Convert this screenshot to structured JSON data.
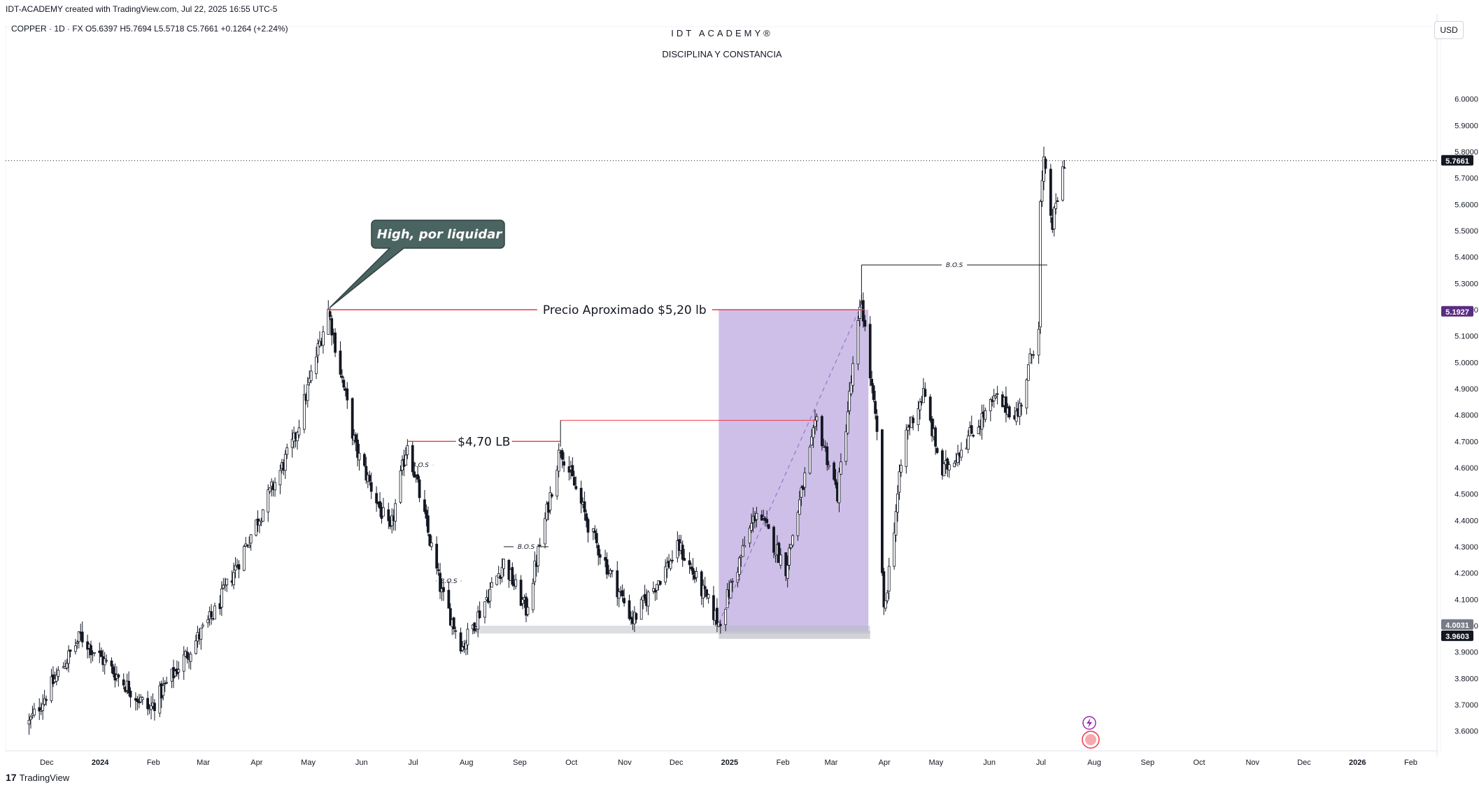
{
  "header": {
    "created_line": "IDT-ACADEMY created with TradingView.com, Jul 22, 2025 16:55 UTC-5",
    "ohlc_line": "COPPER · 1D · FX  O5.6397  H5.7694  L5.5718  C5.7661  +0.1264 (+2.24%)",
    "brand_title": "IDT ACADEMY®",
    "brand_subtitle": "DISCIPLINA Y CONSTANCIA",
    "currency": "USD"
  },
  "footer": {
    "logo_mark": "17",
    "logo_text": "TradingView"
  },
  "colors": {
    "candle": "#131722",
    "red_line": "#f23645",
    "purple_zone": "#b39ddb",
    "callout_bg": "#4a6461",
    "grey_zone": "#b2b5be"
  },
  "chart_data": {
    "type": "candlestick",
    "symbol": "COPPER",
    "interval": "1D",
    "ylim": [
      3.53,
      6.27
    ],
    "y_ticks": [
      3.6,
      3.7,
      3.8,
      3.9,
      4.0,
      4.1,
      4.2,
      4.3,
      4.4,
      4.5,
      4.6,
      4.7,
      4.8,
      4.9,
      5.0,
      5.1,
      5.2,
      5.3,
      5.4,
      5.5,
      5.6,
      5.7,
      5.8,
      5.9,
      6.0
    ],
    "y_tick_labels": [
      "3.6000",
      "3.7000",
      "3.8000",
      "3.9000",
      "4.0000",
      "4.1000",
      "4.2000",
      "4.3000",
      "4.4000",
      "4.5000",
      "4.6000",
      "4.7000",
      "4.8000",
      "4.9000",
      "5.0000",
      "5.1000",
      "5.2000",
      "5.3000",
      "5.4000",
      "5.5000",
      "5.6000",
      "5.7000",
      "5.8000",
      "5.9000",
      "6.0000"
    ],
    "x_labels": [
      "Dec",
      "2024",
      "Feb",
      "Mar",
      "Apr",
      "May",
      "Jun",
      "Jul",
      "Aug",
      "Sep",
      "Oct",
      "Nov",
      "Dec",
      "2025",
      "Feb",
      "Mar",
      "Apr",
      "May",
      "Jun",
      "Jul",
      "Aug",
      "Sep",
      "Oct",
      "Nov",
      "Dec",
      "2026",
      "Feb"
    ],
    "bold_x_labels": [
      "2024",
      "2025",
      "2026"
    ],
    "price_badges": [
      {
        "value": 5.7661,
        "label": "5.7661",
        "color": "#131722"
      },
      {
        "value": 5.1927,
        "label": "5.1927",
        "color": "#5b2c83"
      },
      {
        "value": 4.0031,
        "label": "4.0031",
        "color": "#787b86"
      },
      {
        "value": 3.9603,
        "label": "3.9603",
        "color": "#131722"
      }
    ],
    "key_points": [
      {
        "date": "2023-11-28",
        "price": 3.63
      },
      {
        "date": "2023-12-28",
        "price": 3.96
      },
      {
        "date": "2024-02-06",
        "price": 3.68
      },
      {
        "date": "2024-03-15",
        "price": 4.05
      },
      {
        "date": "2024-04-30",
        "price": 4.7
      },
      {
        "date": "2024-05-20",
        "price": 5.2
      },
      {
        "date": "2024-06-05",
        "price": 4.67
      },
      {
        "date": "2024-06-25",
        "price": 4.35
      },
      {
        "date": "2024-07-05",
        "price": 4.7
      },
      {
        "date": "2024-07-25",
        "price": 4.12
      },
      {
        "date": "2024-08-06",
        "price": 3.92
      },
      {
        "date": "2024-08-30",
        "price": 4.24
      },
      {
        "date": "2024-09-12",
        "price": 4.06
      },
      {
        "date": "2024-10-02",
        "price": 4.68
      },
      {
        "date": "2024-10-20",
        "price": 4.35
      },
      {
        "date": "2024-11-13",
        "price": 4.02
      },
      {
        "date": "2024-12-10",
        "price": 4.3
      },
      {
        "date": "2025-01-02",
        "price": 4.01
      },
      {
        "date": "2025-01-24",
        "price": 4.44
      },
      {
        "date": "2025-02-10",
        "price": 4.22
      },
      {
        "date": "2025-02-28",
        "price": 4.78
      },
      {
        "date": "2025-03-12",
        "price": 4.5
      },
      {
        "date": "2025-03-26",
        "price": 5.24
      },
      {
        "date": "2025-04-04",
        "price": 4.72
      },
      {
        "date": "2025-04-08",
        "price": 4.04
      },
      {
        "date": "2025-04-20",
        "price": 4.72
      },
      {
        "date": "2025-05-01",
        "price": 4.88
      },
      {
        "date": "2025-05-12",
        "price": 4.58
      },
      {
        "date": "2025-06-12",
        "price": 4.86
      },
      {
        "date": "2025-06-25",
        "price": 4.8
      },
      {
        "date": "2025-07-07",
        "price": 5.15
      },
      {
        "date": "2025-07-08",
        "price": 5.6
      },
      {
        "date": "2025-07-10",
        "price": 5.75
      },
      {
        "date": "2025-07-15",
        "price": 5.52
      },
      {
        "date": "2025-07-22",
        "price": 5.7661
      }
    ],
    "annotations": {
      "callout": {
        "text": "High, por liquidar",
        "date": "2024-05-20",
        "price": 5.2
      },
      "level_520": {
        "text": "Precio Aproximado $5,20 lb",
        "price": 5.2,
        "from": "2024-05-20",
        "to": "2025-03-28"
      },
      "level_470": {
        "text": "$4,70 LB",
        "price": 4.7,
        "from": "2024-07-05",
        "to": "2024-10-02"
      },
      "level_478": {
        "price": 4.78,
        "from": "2024-10-02",
        "to": "2025-02-28"
      },
      "bos_labels": [
        {
          "text": "B.O.S",
          "price": 5.37,
          "from": "2025-03-26",
          "to": "2025-07-12"
        },
        {
          "text": "B.O.S",
          "price": 4.3,
          "from": "2024-08-30",
          "to": "2024-09-25"
        },
        {
          "text": "B.O.S",
          "price": 4.17,
          "from": "2024-07-22",
          "to": "2024-08-05"
        },
        {
          "text": "B.O.S",
          "price": 4.61,
          "from": "2024-07-05",
          "to": "2024-07-20"
        }
      ],
      "purple_zone": {
        "from": "2025-01-02",
        "to": "2025-03-30",
        "top": 5.2,
        "bottom": 3.98
      },
      "grey_zone_upper": {
        "from": "2024-08-12",
        "to": "2025-03-31",
        "top": 4.0,
        "bottom": 3.97
      },
      "grey_zone_lower": {
        "from": "2025-01-02",
        "to": "2025-03-31",
        "top": 3.98,
        "bottom": 3.95
      },
      "trend_line": {
        "from_date": "2025-01-02",
        "from_price": 4.01,
        "to_date": "2025-03-26",
        "to_price": 5.22
      }
    }
  }
}
